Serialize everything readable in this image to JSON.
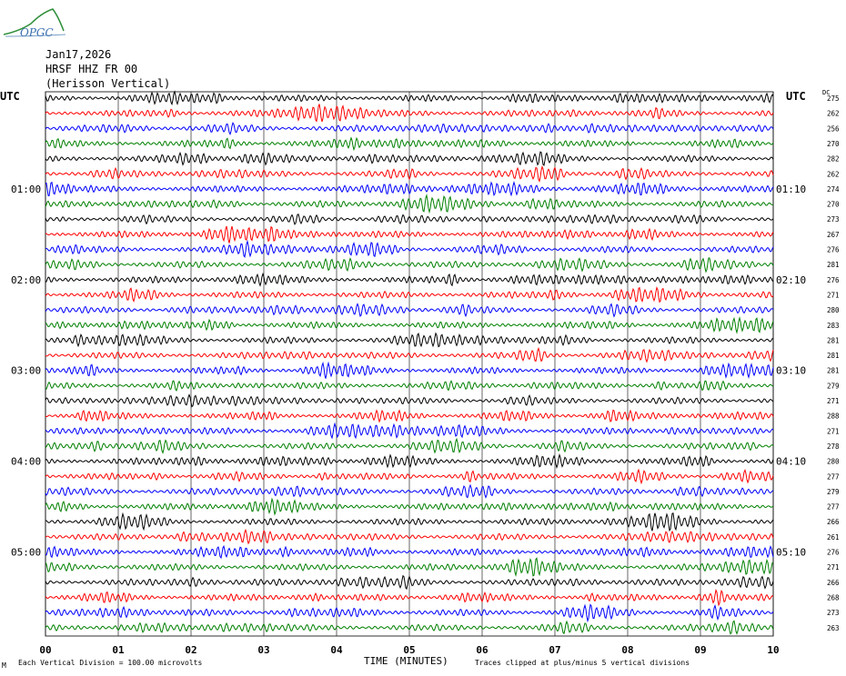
{
  "header": {
    "logo_text": "OPGC",
    "date": "Jan17,2026",
    "station": "HRSF HHZ FR 00",
    "location": "(Herisson Vertical)"
  },
  "left_axis_title": "UTC",
  "right_axis_title": "UTC",
  "dc_header": "DC",
  "footer": {
    "scale": "Each Vertical Division =  100.00 microvolts",
    "clip_note": "Traces clipped at plus/minus 5 vertical divisions",
    "mark": "M"
  },
  "colors": {
    "black": "#000000",
    "red": "#ff0000",
    "blue": "#0000ff",
    "green": "#008000",
    "grid": "#000000"
  },
  "chart_data": {
    "type": "line",
    "title": "",
    "xlabel": "TIME (MINUTES)",
    "xlim": [
      0,
      10
    ],
    "x_ticks": [
      "00",
      "01",
      "02",
      "03",
      "04",
      "05",
      "06",
      "07",
      "08",
      "09",
      "10"
    ],
    "trace_count": 36,
    "trace_colors": [
      "black",
      "red",
      "blue",
      "green"
    ],
    "left_hour_labels": [
      {
        "trace": 6,
        "label": "01:00"
      },
      {
        "trace": 12,
        "label": "02:00"
      },
      {
        "trace": 18,
        "label": "03:00"
      },
      {
        "trace": 24,
        "label": "04:00"
      },
      {
        "trace": 30,
        "label": "05:00"
      }
    ],
    "right_hour_labels": [
      {
        "trace": 6,
        "label": "01:10"
      },
      {
        "trace": 12,
        "label": "02:10"
      },
      {
        "trace": 18,
        "label": "03:10"
      },
      {
        "trace": 24,
        "label": "04:10"
      },
      {
        "trace": 30,
        "label": "05:10"
      }
    ],
    "dc_values": [
      "275",
      "262",
      "256",
      "270",
      "282",
      "262",
      "274",
      "270",
      "273",
      "267",
      "276",
      "281",
      "276",
      "271",
      "280",
      "283",
      "281",
      "281",
      "281",
      "279",
      "271",
      "288",
      "271",
      "278",
      "280",
      "277",
      "279",
      "277",
      "266",
      "261",
      "276",
      "271",
      "266",
      "268",
      "273",
      "263"
    ]
  }
}
